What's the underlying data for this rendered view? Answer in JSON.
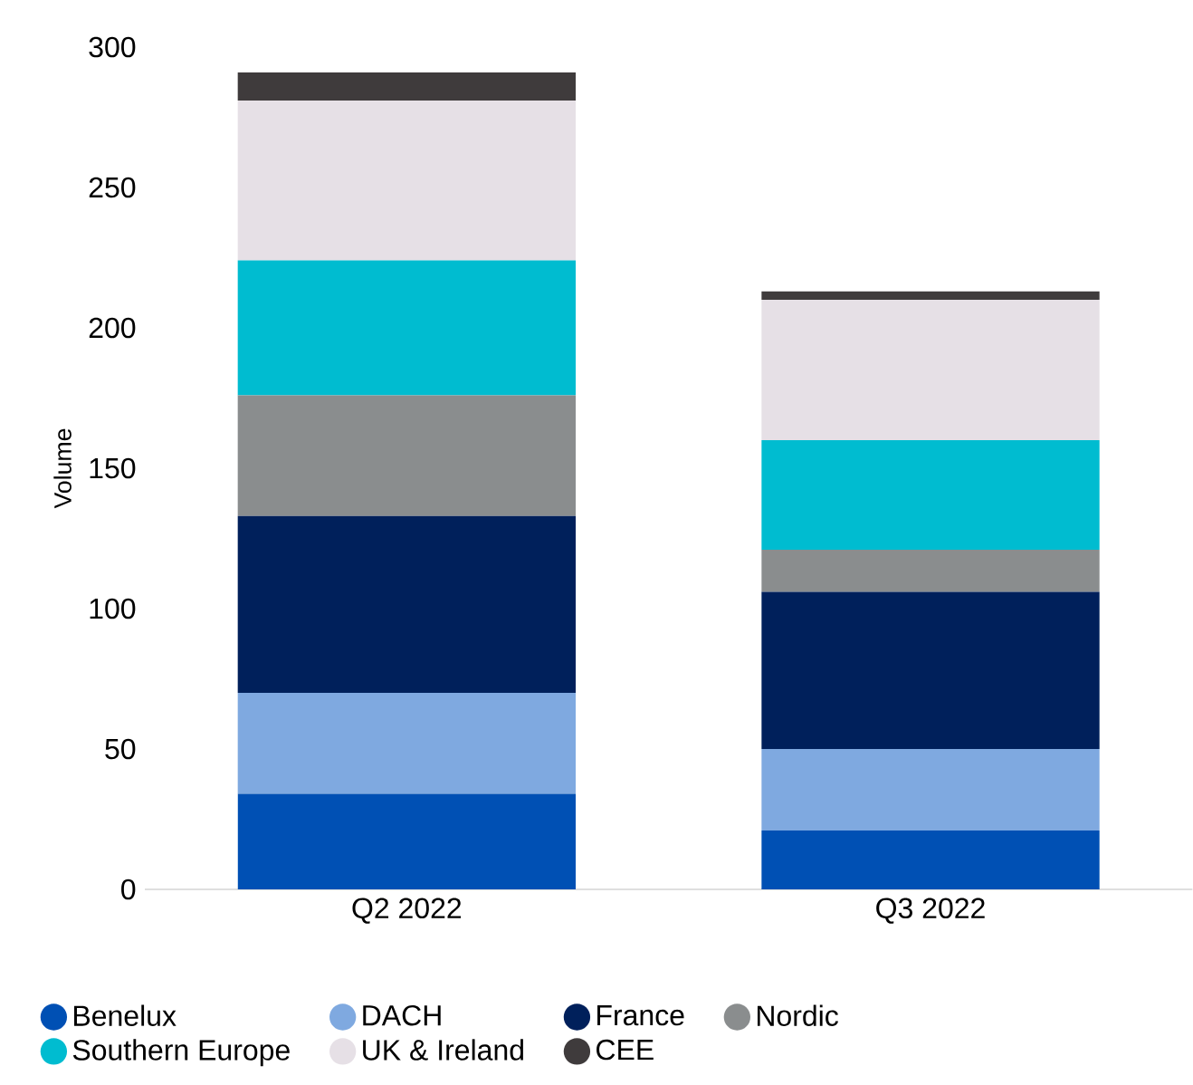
{
  "chart_data": {
    "type": "bar",
    "stacked": true,
    "ylabel": "Volume",
    "categories": [
      "Q2 2022",
      "Q3 2022"
    ],
    "series": [
      {
        "name": "Benelux",
        "color": "#0050b4",
        "values": [
          34,
          21
        ]
      },
      {
        "name": "DACH",
        "color": "#7fa9e0",
        "values": [
          36,
          29
        ]
      },
      {
        "name": "France",
        "color": "#00205b",
        "values": [
          63,
          56
        ]
      },
      {
        "name": "Nordic",
        "color": "#8a8d8e",
        "values": [
          43,
          15
        ]
      },
      {
        "name": "Southern Europe",
        "color": "#00bcd0",
        "values": [
          48,
          39
        ]
      },
      {
        "name": "UK & Ireland",
        "color": "#e6e0e6",
        "values": [
          57,
          50
        ]
      },
      {
        "name": "CEE",
        "color": "#3f3b3c",
        "values": [
          10,
          3
        ]
      }
    ],
    "ylim": [
      0,
      300
    ],
    "yticks": [
      0,
      50,
      100,
      150,
      200,
      250,
      300
    ],
    "grid": false,
    "legend": "bottom"
  }
}
